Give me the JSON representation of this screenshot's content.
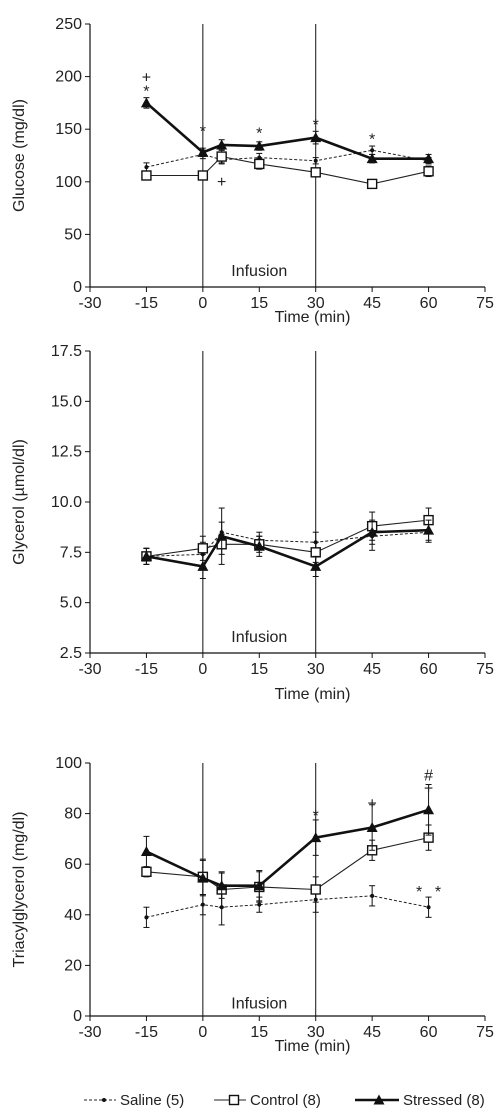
{
  "chart_data": [
    {
      "type": "line",
      "xlabel": "Time (min)",
      "ylabel": "Glucose (mg/dl)",
      "xlim": [
        -30,
        75
      ],
      "ylim": [
        0,
        250
      ],
      "xticks": [
        -30,
        -15,
        0,
        15,
        30,
        45,
        60,
        75
      ],
      "yticks": [
        0,
        50,
        100,
        150,
        200,
        250
      ],
      "ytick_labels": [
        "0",
        "50",
        "100",
        "150",
        "200",
        "250"
      ],
      "vlines": [
        0,
        30
      ],
      "annotation": {
        "text": "Infusion",
        "x": 15,
        "y": 15
      },
      "series": [
        {
          "name": "Saline (5)",
          "style": "saline",
          "x": [
            -15,
            0,
            5,
            15,
            30,
            45,
            60
          ],
          "y": [
            114,
            126,
            121,
            123,
            120,
            130,
            120
          ],
          "err": [
            4,
            4,
            4,
            4,
            3,
            4,
            3
          ]
        },
        {
          "name": "Control (8)",
          "style": "control",
          "x": [
            -15,
            0,
            5,
            15,
            30,
            45,
            60
          ],
          "y": [
            106,
            106,
            124,
            117,
            109,
            98,
            110
          ],
          "err": [
            3,
            3,
            6,
            5,
            4,
            4,
            5
          ]
        },
        {
          "name": "Stressed (8)",
          "style": "stressed",
          "x": [
            -15,
            0,
            5,
            15,
            30,
            45,
            60
          ],
          "y": [
            175,
            128,
            135,
            134,
            142,
            122,
            122
          ],
          "err": [
            5,
            4,
            5,
            4,
            6,
            4,
            4
          ]
        }
      ],
      "markers": [
        {
          "text": "+",
          "x": -15,
          "y": 199
        },
        {
          "text": "*",
          "x": -15,
          "y": 186
        },
        {
          "text": "*",
          "x": 0,
          "y": 148
        },
        {
          "text": "+",
          "x": 5,
          "y": 100
        },
        {
          "text": "*",
          "x": 15,
          "y": 146
        },
        {
          "text": "*",
          "x": 30,
          "y": 154
        },
        {
          "text": "*",
          "x": 45,
          "y": 140
        }
      ]
    },
    {
      "type": "line",
      "xlabel": "Time (min)",
      "ylabel": "Glycerol (µmol/dl)",
      "xlim": [
        -30,
        75
      ],
      "ylim": [
        2.5,
        17.5
      ],
      "xticks": [
        -30,
        -15,
        0,
        15,
        30,
        45,
        60,
        75
      ],
      "yticks": [
        2.5,
        5.0,
        7.5,
        10.0,
        12.5,
        15.0,
        17.5
      ],
      "ytick_labels": [
        "2.5",
        "5.0",
        "7.5",
        "10.0",
        "12.5",
        "15.0",
        "17.5"
      ],
      "vlines": [
        0,
        30
      ],
      "annotation": {
        "text": "Infusion",
        "x": 15,
        "y": 3.3
      },
      "series": [
        {
          "name": "Saline (5)",
          "style": "saline",
          "x": [
            -15,
            0,
            5,
            15,
            30,
            45,
            60
          ],
          "y": [
            7.3,
            7.4,
            8.5,
            8.1,
            8.0,
            8.3,
            8.5
          ],
          "err": [
            0.4,
            0.6,
            0.5,
            0.4,
            0.5,
            0.7,
            0.5
          ]
        },
        {
          "name": "Control (8)",
          "style": "control",
          "x": [
            -15,
            0,
            5,
            15,
            30,
            45,
            60
          ],
          "y": [
            7.3,
            7.7,
            7.9,
            7.9,
            7.5,
            8.8,
            9.1
          ],
          "err": [
            0.4,
            0.6,
            0.5,
            0.4,
            0.5,
            0.7,
            0.6
          ]
        },
        {
          "name": "Stressed (8)",
          "style": "stressed",
          "x": [
            -15,
            0,
            5,
            15,
            30,
            45,
            60
          ],
          "y": [
            7.3,
            6.8,
            8.3,
            7.8,
            6.8,
            8.5,
            8.6
          ],
          "err": [
            0.4,
            0.6,
            1.4,
            0.5,
            0.5,
            0.6,
            0.5
          ]
        }
      ],
      "markers": []
    },
    {
      "type": "line",
      "xlabel": "Time (min)",
      "ylabel": "Triacylglycerol (mg/dl)",
      "xlim": [
        -30,
        75
      ],
      "ylim": [
        0,
        100
      ],
      "xticks": [
        -30,
        -15,
        0,
        15,
        30,
        45,
        60,
        75
      ],
      "yticks": [
        0,
        20,
        40,
        60,
        80,
        100
      ],
      "ytick_labels": [
        "0",
        "20",
        "40",
        "60",
        "80",
        "100"
      ],
      "vlines": [
        0,
        30
      ],
      "annotation": {
        "text": "Infusion",
        "x": 15,
        "y": 5
      },
      "series": [
        {
          "name": "Saline (5)",
          "style": "saline",
          "x": [
            -15,
            0,
            5,
            15,
            30,
            45,
            60
          ],
          "y": [
            39,
            44,
            43,
            44,
            46,
            47.5,
            43
          ],
          "err": [
            4,
            4,
            7,
            3,
            5,
            4,
            4
          ]
        },
        {
          "name": "Control (8)",
          "style": "control",
          "x": [
            -15,
            0,
            5,
            15,
            30,
            45,
            60
          ],
          "y": [
            57,
            55,
            50,
            51,
            50,
            65.5,
            70.5
          ],
          "err": [
            2,
            7,
            7,
            6,
            5,
            4,
            5
          ]
        },
        {
          "name": "Stressed (8)",
          "style": "stressed",
          "x": [
            -15,
            0,
            5,
            15,
            30,
            45,
            60
          ],
          "y": [
            65,
            54.5,
            51.5,
            51.5,
            70.5,
            74.5,
            81.5
          ],
          "err": [
            6,
            7,
            5,
            6,
            7,
            9,
            10
          ]
        }
      ],
      "markers": [
        {
          "text": "#",
          "x": 60,
          "y": 95
        },
        {
          "text": "+",
          "x": 60,
          "y": 90
        },
        {
          "text": "+",
          "x": 45,
          "y": 84
        },
        {
          "text": "*",
          "x": 30,
          "y": 79
        },
        {
          "text": "*",
          "x": 57.5,
          "y": 49
        },
        {
          "text": "*",
          "x": 62.5,
          "y": 49
        }
      ]
    }
  ],
  "legend": {
    "placement": "bottom",
    "items": [
      {
        "label": "Saline (5)",
        "style": "saline"
      },
      {
        "label": "Control (8)",
        "style": "control"
      },
      {
        "label": "Stressed (8)",
        "style": "stressed"
      }
    ]
  }
}
